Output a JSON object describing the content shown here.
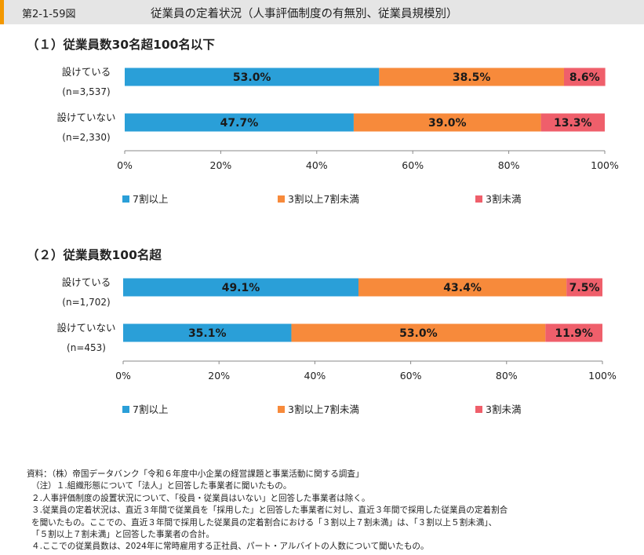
{
  "figure": {
    "number": "第2-1-59図",
    "title": "従業員の定着状況（人事評価制度の有無別、従業員規模別）"
  },
  "colors": {
    "s1": "#2a9fd8",
    "s2": "#f78a3b",
    "s3": "#ef5f6b"
  },
  "chart_data": [
    {
      "type": "bar",
      "orientation": "horizontal-stacked-100",
      "title": "（１）従業員数30名超100名以下",
      "categories": [
        "設けている",
        "設けていない"
      ],
      "category_counts": [
        "(n=3,537)",
        "(n=2,330)"
      ],
      "series": [
        {
          "name": "7割以上",
          "values": [
            53.0,
            47.7
          ]
        },
        {
          "name": "3割以上7割未満",
          "values": [
            38.5,
            39.0
          ]
        },
        {
          "name": "3割未満",
          "values": [
            8.6,
            13.3
          ]
        }
      ],
      "data_labels": [
        [
          "53.0%",
          "47.7%"
        ],
        [
          "38.5%",
          "39.0%"
        ],
        [
          "8.6%",
          "13.3%"
        ]
      ],
      "xlim": [
        0,
        100
      ],
      "xticks": [
        "0%",
        "20%",
        "40%",
        "60%",
        "80%",
        "100%"
      ],
      "legend": "bottom",
      "grid": false
    },
    {
      "type": "bar",
      "orientation": "horizontal-stacked-100",
      "title": "（２）従業員数100名超",
      "categories": [
        "設けている",
        "設けていない"
      ],
      "category_counts": [
        "(n=1,702)",
        "(n=453)"
      ],
      "series": [
        {
          "name": "7割以上",
          "values": [
            49.1,
            35.1
          ]
        },
        {
          "name": "3割以上7割未満",
          "values": [
            43.4,
            53.0
          ]
        },
        {
          "name": "3割未満",
          "values": [
            7.5,
            11.9
          ]
        }
      ],
      "data_labels": [
        [
          "49.1%",
          "35.1%"
        ],
        [
          "43.4%",
          "53.0%"
        ],
        [
          "7.5%",
          "11.9%"
        ]
      ],
      "xlim": [
        0,
        100
      ],
      "xticks": [
        "0%",
        "20%",
        "40%",
        "60%",
        "80%",
        "100%"
      ],
      "legend": "bottom",
      "grid": false
    }
  ],
  "notes": [
    "資料：（株）帝国データバンク「令和６年度中小企業の経営課題と事業活動に関する調査」",
    "（注）１.組織形態について「法人」と回答した事業者に聞いたもの。",
    "２.人事評価制度の設置状況について、「役員・従業員はいない」と回答した事業者は除く。",
    "３.従業員の定着状況は、直近３年間で従業員を「採用した」と回答した事業者に対し、直近３年間で採用した従業員の定着割合",
    "を聞いたもの。ここでの、直近３年間で採用した従業員の定着割合における「３割以上７割未満」は、「３割以上５割未満」、",
    "「５割以上７割未満」と回答した事業者の合計。",
    "４.ここでの従業員数は、2024年に常時雇用する正社員、パート・アルバイトの人数について聞いたもの。"
  ]
}
